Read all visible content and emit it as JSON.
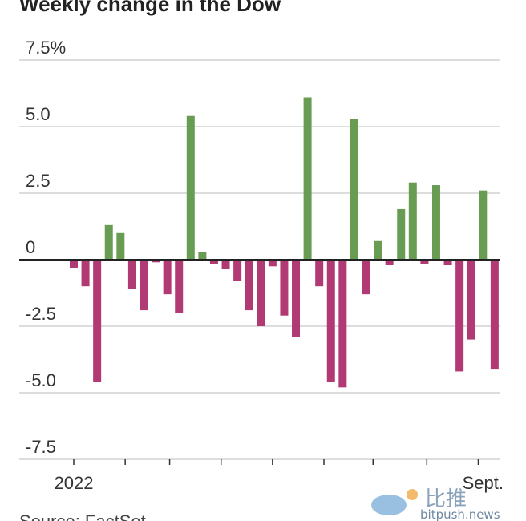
{
  "chart_data": {
    "type": "bar",
    "title": "Weekly change in the Dow",
    "xlabel": "",
    "ylabel": "",
    "ylim": [
      -7.5,
      7.5
    ],
    "y_ticks": [
      {
        "value": 7.5,
        "label": "7.5%"
      },
      {
        "value": 5.0,
        "label": "5.0"
      },
      {
        "value": 2.5,
        "label": "2.5"
      },
      {
        "value": 0,
        "label": "0"
      },
      {
        "value": -2.5,
        "label": "-2.5"
      },
      {
        "value": -5.0,
        "label": "-5.0"
      },
      {
        "value": -7.5,
        "label": "-7.5"
      }
    ],
    "x_labels": [
      {
        "week_index": 0,
        "label": "2022"
      },
      {
        "week_index": 35,
        "label": "Sept."
      }
    ],
    "x_tick_weeks": [
      0,
      4.4,
      8.2,
      12.6,
      17,
      21.4,
      25.6,
      30.2,
      34.6
    ],
    "grid": true,
    "colors": {
      "positive": "#699c53",
      "negative": "#b13a74",
      "grid": "#dddddd",
      "axis": "#222222"
    },
    "values": [
      -0.3,
      -1.0,
      -4.6,
      1.3,
      1.0,
      -1.1,
      -1.9,
      -0.1,
      -1.3,
      -2.0,
      5.4,
      0.3,
      -0.15,
      -0.35,
      -0.8,
      -1.9,
      -2.5,
      -0.25,
      -2.1,
      -2.9,
      6.1,
      -1.0,
      -4.6,
      -4.8,
      5.3,
      -1.3,
      0.7,
      -0.2,
      1.9,
      2.9,
      -0.15,
      2.8,
      -0.2,
      -4.2,
      -3.0,
      2.6,
      -4.1
    ],
    "source": "Source: FactSet"
  },
  "watermark": {
    "text": "比推",
    "subtext": "bitpush.news"
  }
}
